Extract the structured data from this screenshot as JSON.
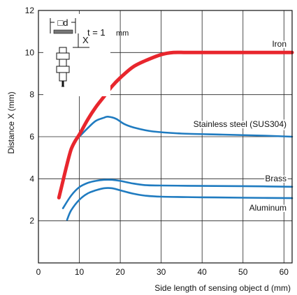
{
  "chart_data": {
    "type": "line",
    "xlabel": "Side length of sensing object d (mm)",
    "ylabel": "Distance X (mm)",
    "xlim": [
      0,
      62
    ],
    "ylim": [
      0,
      12
    ],
    "x_ticks": [
      "0",
      "10",
      "20",
      "30",
      "40",
      "50",
      "60"
    ],
    "y_ticks": [
      "2",
      "4",
      "6",
      "8",
      "10",
      "12"
    ],
    "grid": true,
    "series": [
      {
        "name": "Iron",
        "color": "#e8262d",
        "x": [
          5,
          6,
          7,
          8,
          9,
          10,
          12,
          14,
          16,
          18,
          20,
          23,
          26,
          30,
          33,
          36,
          40,
          50,
          62
        ],
        "y": [
          3.1,
          3.9,
          4.7,
          5.4,
          5.8,
          6.1,
          6.8,
          7.4,
          7.9,
          8.4,
          8.8,
          9.3,
          9.6,
          9.9,
          10.0,
          10.0,
          10.0,
          10.0,
          10.0
        ]
      },
      {
        "name": "Stainless steel (SUS304)",
        "color": "#1f7bc0",
        "x": [
          10,
          12,
          14,
          16,
          17,
          19,
          21,
          24,
          28,
          35,
          45,
          55,
          62
        ],
        "y": [
          6.0,
          6.4,
          6.75,
          6.9,
          6.95,
          6.85,
          6.6,
          6.4,
          6.25,
          6.15,
          6.1,
          6.05,
          6.0
        ]
      },
      {
        "name": "Brass",
        "color": "#1f7bc0",
        "x": [
          6,
          8,
          10,
          12,
          14,
          16,
          18,
          20,
          23,
          26,
          30,
          40,
          50,
          62
        ],
        "y": [
          2.6,
          3.2,
          3.6,
          3.8,
          3.9,
          3.95,
          3.95,
          3.9,
          3.78,
          3.7,
          3.68,
          3.66,
          3.65,
          3.62
        ]
      },
      {
        "name": "Aluminum",
        "color": "#1f7bc0",
        "x": [
          7,
          8,
          10,
          12,
          14,
          16,
          18,
          20,
          23,
          26,
          30,
          40,
          50,
          62
        ],
        "y": [
          2.05,
          2.5,
          3.0,
          3.3,
          3.45,
          3.55,
          3.55,
          3.45,
          3.3,
          3.2,
          3.15,
          3.12,
          3.1,
          3.08
        ]
      }
    ]
  },
  "inset": {
    "square_label": "□d",
    "x_label": "X",
    "t_label": "t = 1",
    "t_unit": "mm"
  }
}
